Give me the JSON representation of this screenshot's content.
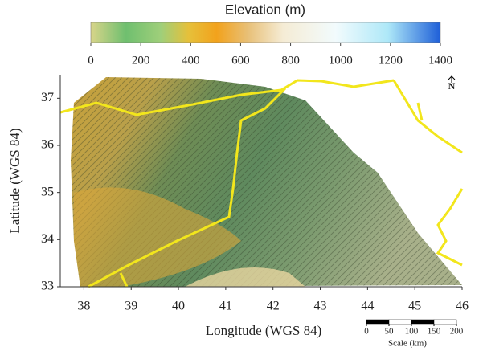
{
  "colorbar": {
    "title": "Elevation (m)",
    "lim": [
      0,
      1400
    ],
    "ticks": [
      0,
      200,
      400,
      600,
      800,
      1000,
      1200,
      1400
    ]
  },
  "map": {
    "xlabel": "Longitude (WGS 84)",
    "ylabel": "Latitude (WGS 84)",
    "xlim": [
      37.5,
      46
    ],
    "ylim": [
      33,
      37.5
    ],
    "xticks": [
      38,
      39,
      40,
      41,
      42,
      43,
      44,
      45,
      46
    ],
    "yticks": [
      33,
      34,
      35,
      36,
      37
    ]
  },
  "scale_bar": {
    "label": "Scale (km)",
    "ticks": [
      0,
      50,
      100,
      150,
      200
    ]
  },
  "north_label": "N"
}
